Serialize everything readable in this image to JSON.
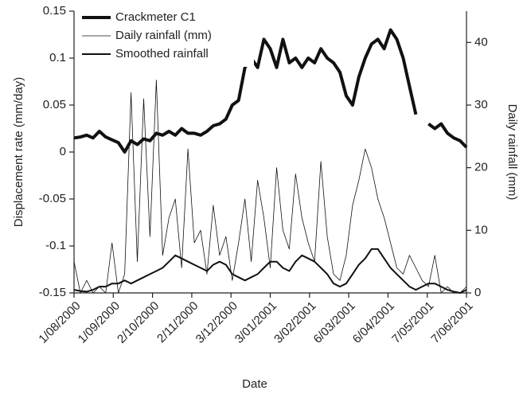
{
  "chart_data": {
    "type": "line",
    "xlabel": "Date",
    "ylabel": "Displacement rate (mm/day)",
    "y2label": "Daily rainfall (mm)",
    "x": [
      "2000-08-01",
      "2000-08-06",
      "2000-08-11",
      "2000-08-16",
      "2000-08-21",
      "2000-08-26",
      "2000-08-31",
      "2000-09-05",
      "2000-09-10",
      "2000-09-15",
      "2000-09-20",
      "2000-09-25",
      "2000-09-30",
      "2000-10-05",
      "2000-10-10",
      "2000-10-15",
      "2000-10-20",
      "2000-10-25",
      "2000-10-30",
      "2000-11-04",
      "2000-11-09",
      "2000-11-14",
      "2000-11-19",
      "2000-11-24",
      "2000-11-29",
      "2000-12-04",
      "2000-12-09",
      "2000-12-14",
      "2000-12-19",
      "2000-12-24",
      "2000-12-29",
      "2001-01-03",
      "2001-01-08",
      "2001-01-13",
      "2001-01-18",
      "2001-01-23",
      "2001-01-28",
      "2001-02-02",
      "2001-02-07",
      "2001-02-12",
      "2001-02-17",
      "2001-02-22",
      "2001-02-27",
      "2001-03-04",
      "2001-03-09",
      "2001-03-14",
      "2001-03-19",
      "2001-03-24",
      "2001-03-29",
      "2001-04-03",
      "2001-04-08",
      "2001-04-13",
      "2001-04-18",
      "2001-04-23",
      "2001-04-28",
      "2001-05-03",
      "2001-05-08",
      "2001-05-13",
      "2001-05-18",
      "2001-05-23",
      "2001-05-28",
      "2001-06-02",
      "2001-06-07"
    ],
    "xlim": [
      "2000-08-01",
      "2001-06-07"
    ],
    "xticks": [
      {
        "value": "2000-08-01",
        "label": "1/08/2000"
      },
      {
        "value": "2000-09-01",
        "label": "1/09/2000"
      },
      {
        "value": "2000-10-02",
        "label": "2/10/2000"
      },
      {
        "value": "2000-11-02",
        "label": "2/11/2000"
      },
      {
        "value": "2000-12-03",
        "label": "3/12/2000"
      },
      {
        "value": "2001-01-03",
        "label": "3/01/2001"
      },
      {
        "value": "2001-02-03",
        "label": "3/02/2001"
      },
      {
        "value": "2001-03-06",
        "label": "6/03/2001"
      },
      {
        "value": "2001-04-06",
        "label": "6/04/2001"
      },
      {
        "value": "2001-05-07",
        "label": "7/05/2001"
      },
      {
        "value": "2001-06-07",
        "label": "7/06/2001"
      }
    ],
    "ylim": [
      -0.15,
      0.15
    ],
    "yticks": [
      -0.15,
      -0.1,
      -0.05,
      0,
      0.05,
      0.1,
      0.15
    ],
    "y2lim": [
      0,
      45
    ],
    "y2ticks": [
      0,
      10,
      20,
      30,
      40
    ],
    "legend": "upper left",
    "series": [
      {
        "name": "Crackmeter C1",
        "color": "#111111",
        "width": 4,
        "values": [
          0.015,
          0.016,
          0.018,
          0.015,
          0.022,
          0.016,
          0.013,
          0.01,
          0.0,
          0.012,
          0.008,
          0.014,
          0.012,
          0.02,
          0.018,
          0.022,
          0.018,
          0.025,
          0.02,
          0.02,
          0.018,
          0.022,
          0.028,
          0.03,
          0.035,
          0.05,
          0.055,
          0.09,
          0.1,
          0.09,
          0.12,
          0.11,
          0.09,
          0.12,
          0.095,
          0.1,
          0.09,
          0.1,
          0.095,
          0.11,
          0.1,
          0.095,
          0.085,
          0.06,
          0.05,
          0.08,
          0.1,
          0.115,
          0.12,
          0.11,
          0.13,
          0.12,
          0.1,
          0.07,
          0.04,
          null,
          0.03,
          0.025,
          0.03,
          0.02,
          0.015,
          0.012,
          0.005
        ]
      },
      {
        "name": "Daily rainfall (mm)",
        "color": "#111111",
        "width": 0.8,
        "axis": "y2",
        "values": [
          5,
          0,
          2,
          0,
          1,
          0,
          8,
          0,
          3,
          32,
          5,
          31,
          9,
          34,
          6,
          12,
          15,
          4,
          23,
          8,
          10,
          3,
          14,
          6,
          9,
          2,
          8,
          15,
          5,
          18,
          12,
          4,
          20,
          10,
          7,
          19,
          12,
          8,
          5,
          21,
          9,
          3,
          2,
          6,
          14,
          18,
          23,
          20,
          15,
          12,
          8,
          4,
          3,
          6,
          4,
          2,
          1,
          6,
          0,
          1,
          0,
          0,
          1
        ]
      },
      {
        "name": "Smoothed rainfall",
        "color": "#111111",
        "width": 2,
        "axis": "y2",
        "values": [
          0.5,
          0.3,
          0.2,
          0.5,
          1,
          1,
          1.5,
          1.5,
          2,
          1.5,
          2,
          2.5,
          3,
          3.5,
          4,
          5,
          6,
          5.5,
          5,
          4.5,
          4,
          3.5,
          4.5,
          5,
          4.5,
          3,
          2.5,
          2,
          2.5,
          3,
          4,
          5,
          5,
          4,
          3.5,
          5,
          6,
          5.5,
          5,
          4,
          3,
          1.5,
          1,
          1.5,
          3,
          4.5,
          5.5,
          7,
          7,
          5.5,
          4,
          3,
          2,
          1,
          0.5,
          1,
          1.5,
          1.5,
          1,
          0.5,
          0.2,
          0,
          0.5
        ]
      }
    ]
  }
}
